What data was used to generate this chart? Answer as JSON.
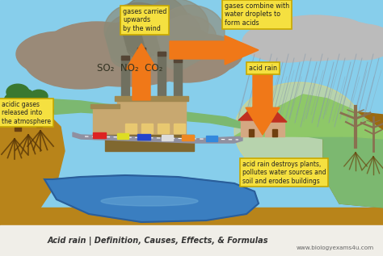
{
  "title": "Acid rain | Definition, Causes, Effects, & Formulas",
  "website": "www.biologyexams4u.com",
  "bg_sky_color": "#87CEEB",
  "bg_ground_color": "#7CB870",
  "bg_hill_color": "#8EC868",
  "bg_dirt_color": "#B8841A",
  "bg_dirt_dark": "#9A6A10",
  "water_color": "#3A7EC0",
  "water_edge": "#2A5E9A",
  "cloud_dark_color": "#9A8A78",
  "cloud_light_color": "#BBBBBB",
  "arrow_color": "#F07818",
  "label_bg_color": "#F5E040",
  "label_border_color": "#C8A800",
  "factory_main": "#C8A870",
  "factory_dark": "#A08850",
  "factory_darker": "#806830",
  "chimney_color": "#707060",
  "smoke_color": "#888878",
  "rain_color": "#8899AA",
  "road_color": "#9090A0",
  "tree_green": "#3A7830",
  "tree_trunk": "#6A4010",
  "tree_dead": "#8A7050",
  "house_wall": "#D4A882",
  "house_roof": "#C03020",
  "labels": {
    "acidic_gases": "acidic gases\nreleased into\nthe atmosphere",
    "gases_carried": "gases carried\nupwards\nby the wind",
    "gases_combine": "gases combine with\nwater droplets to\nform acids",
    "acid_rain_label": "acid rain",
    "acid_rain_destroys": "acid rain destroys plants,\npollutes water sources and\nsoil and erodes buildings",
    "chemicals": "SO₂  NO₂  CO₂"
  },
  "figsize": [
    4.74,
    3.17
  ],
  "dpi": 100
}
